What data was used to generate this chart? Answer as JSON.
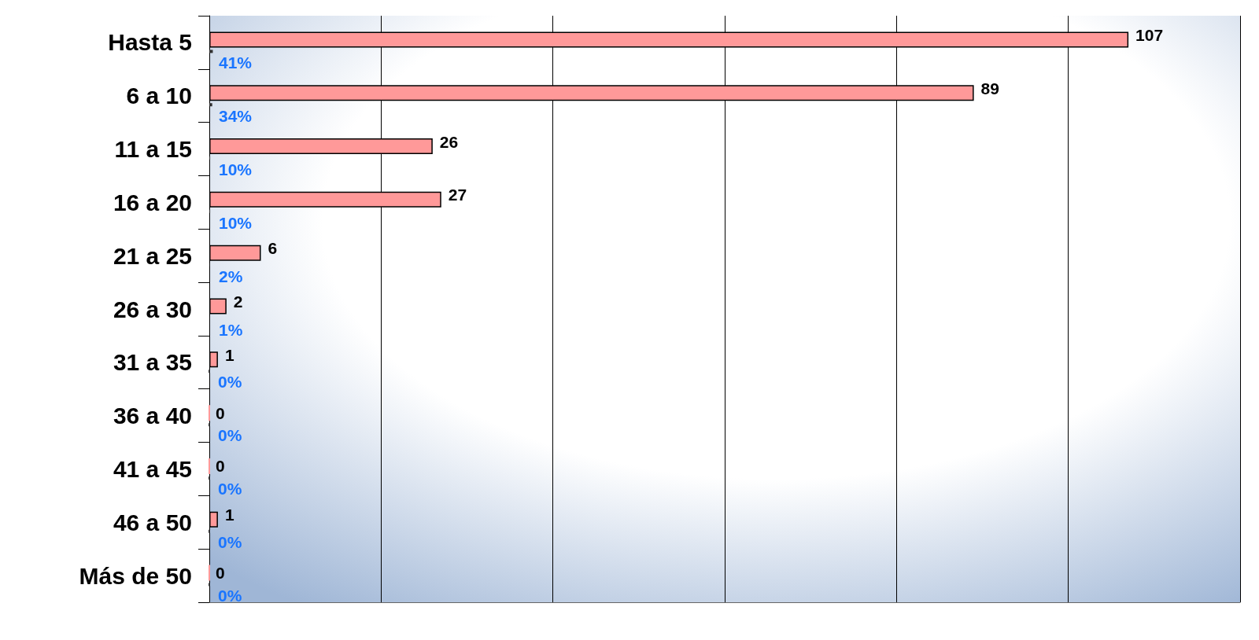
{
  "chart_data": {
    "type": "bar",
    "orientation": "horizontal",
    "categories": [
      "Hasta 5",
      "6 a 10",
      "11 a 15",
      "16 a 20",
      "21 a 25",
      "26 a 30",
      "31 a 35",
      "36 a 40",
      "41 a 45",
      "46 a 50",
      "Más de 50"
    ],
    "series": [
      {
        "color": "#ff9999",
        "values": [
          107,
          89,
          26,
          27,
          6,
          2,
          1,
          0,
          0,
          1,
          0
        ],
        "value_labels": [
          "107",
          "89",
          "26",
          "27",
          "6",
          "2",
          "1",
          "0",
          "0",
          "1",
          "0"
        ]
      },
      {
        "color": "#333333",
        "values": [
          0.41,
          0.34,
          0.1,
          0.1,
          0.02,
          0.01,
          0,
          0,
          0,
          0,
          0
        ],
        "value_labels": [
          "41%",
          "34%",
          "10%",
          "10%",
          "2%",
          "1%",
          "0%",
          "0%",
          "0%",
          "0%",
          "0%"
        ]
      }
    ],
    "xlim": [
      0,
      120
    ],
    "xticks": [
      {
        "value": 0,
        "label": null
      },
      {
        "value": 20,
        "label": null
      },
      {
        "value": 40,
        "label": null
      },
      {
        "value": 60,
        "label": null
      },
      {
        "value": 80,
        "label": null
      },
      {
        "value": 100,
        "label": null
      },
      {
        "value": 120,
        "label": null
      }
    ],
    "grid": "x",
    "tick_labels": "y"
  }
}
